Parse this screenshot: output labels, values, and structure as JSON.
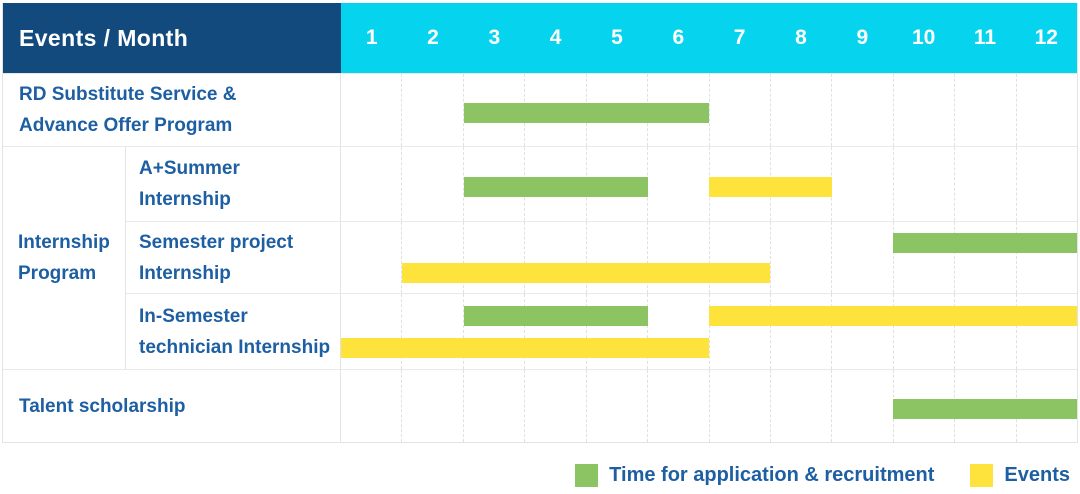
{
  "colors": {
    "header_bg": "#124a7e",
    "months_bg": "#06d3ee",
    "label_text": "#1d5fa2",
    "recruitment": "#8cc363",
    "event": "#ffe33d",
    "grid": "#e0e0e0"
  },
  "table": {
    "corner_label": "Events / Month",
    "months": [
      "1",
      "2",
      "3",
      "4",
      "5",
      "6",
      "7",
      "8",
      "9",
      "10",
      "11",
      "12"
    ],
    "sections": [
      {
        "id": "rd-substitute",
        "rows": [
          {
            "id": "rd-substitute-service",
            "label_lines": [
              "RD Substitute Service &",
              "Advance Offer Program"
            ],
            "bars": [
              {
                "series": "recruitment",
                "start": 3,
                "end": 6,
                "lane": "single"
              }
            ]
          }
        ]
      },
      {
        "id": "internship-program",
        "group_label_lines": [
          "Internship",
          "Program"
        ],
        "rows": [
          {
            "id": "a-plus-summer-internship",
            "label_lines": [
              "A+Summer",
              "Internship"
            ],
            "bars": [
              {
                "series": "recruitment",
                "start": 3,
                "end": 5,
                "lane": "single"
              },
              {
                "series": "event",
                "start": 7,
                "end": 8,
                "lane": "single"
              }
            ]
          },
          {
            "id": "semester-project-internship",
            "label_lines": [
              "Semester project",
              "Internship"
            ],
            "bars": [
              {
                "series": "recruitment",
                "start": 10,
                "end": 12,
                "lane": "top"
              },
              {
                "series": "event",
                "start": 2,
                "end": 7,
                "lane": "bottom"
              }
            ]
          },
          {
            "id": "in-semester-technician-internship",
            "label_lines": [
              "In-Semester",
              "technician Internship"
            ],
            "bars": [
              {
                "series": "recruitment",
                "start": 3,
                "end": 5,
                "lane": "top"
              },
              {
                "series": "event",
                "start": 7,
                "end": 12,
                "lane": "top"
              },
              {
                "series": "event",
                "start": 1,
                "end": 6,
                "lane": "bottom"
              }
            ]
          }
        ]
      },
      {
        "id": "talent-scholarship",
        "rows": [
          {
            "id": "talent-scholarship-row",
            "label_lines": [
              "Talent scholarship"
            ],
            "bars": [
              {
                "series": "recruitment",
                "start": 10,
                "end": 12,
                "lane": "single"
              }
            ]
          }
        ]
      }
    ]
  },
  "legend": {
    "items": [
      {
        "series": "recruitment",
        "label": "Time for application & recruitment"
      },
      {
        "series": "event",
        "label": "Events"
      }
    ]
  },
  "chart_data": {
    "type": "bar",
    "subtype": "gantt-schedule",
    "title": "Events / Month",
    "x_categories": [
      "1",
      "2",
      "3",
      "4",
      "5",
      "6",
      "7",
      "8",
      "9",
      "10",
      "11",
      "12"
    ],
    "x_range": [
      1,
      12
    ],
    "grid": true,
    "legend_position": "bottom-right",
    "series_legend": [
      "Time for application & recruitment",
      "Events"
    ],
    "rows": [
      {
        "label": "RD Substitute Service & Advance Offer Program",
        "group": null,
        "segments": [
          {
            "series": "Time for application & recruitment",
            "start_month": 3,
            "end_month": 6
          }
        ]
      },
      {
        "label": "A+Summer Internship",
        "group": "Internship Program",
        "segments": [
          {
            "series": "Time for application & recruitment",
            "start_month": 3,
            "end_month": 5
          },
          {
            "series": "Events",
            "start_month": 7,
            "end_month": 8
          }
        ]
      },
      {
        "label": "Semester project Internship",
        "group": "Internship Program",
        "segments": [
          {
            "series": "Time for application & recruitment",
            "start_month": 10,
            "end_month": 12
          },
          {
            "series": "Events",
            "start_month": 2,
            "end_month": 7
          }
        ]
      },
      {
        "label": "In-Semester technician Internship",
        "group": "Internship Program",
        "segments": [
          {
            "series": "Time for application & recruitment",
            "start_month": 3,
            "end_month": 5
          },
          {
            "series": "Events",
            "start_month": 7,
            "end_month": 12
          },
          {
            "series": "Events",
            "start_month": 1,
            "end_month": 6
          }
        ]
      },
      {
        "label": "Talent scholarship",
        "group": null,
        "segments": [
          {
            "series": "Time for application & recruitment",
            "start_month": 10,
            "end_month": 12
          }
        ]
      }
    ]
  }
}
